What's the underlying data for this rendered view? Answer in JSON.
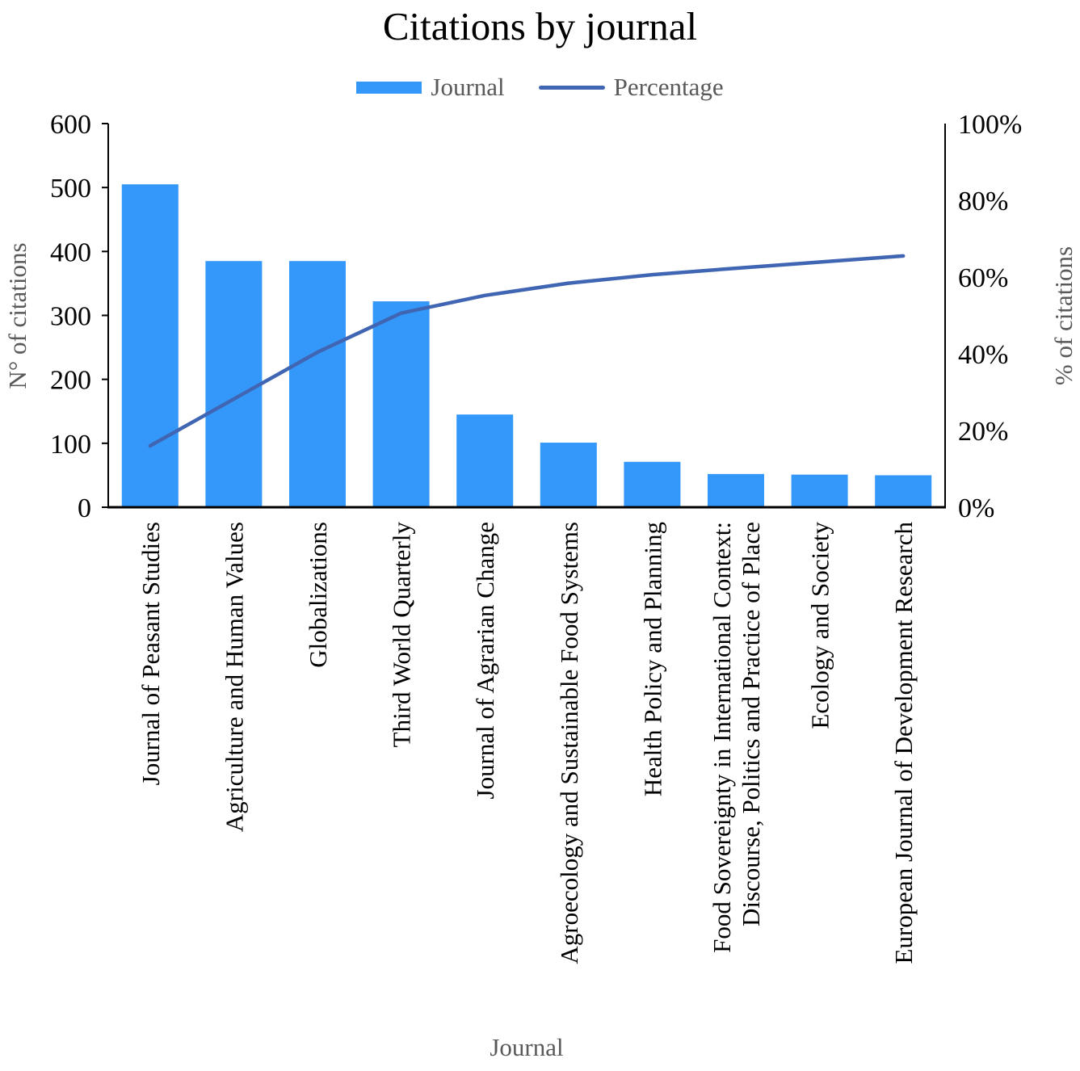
{
  "chart_data": {
    "type": "bar",
    "subtype": "pareto-combo (bars + cumulative percentage line)",
    "title": "Citations by journal",
    "legend": [
      "Journal",
      "Percentage"
    ],
    "legend_position": "top",
    "grid": false,
    "xlabel": "Journal",
    "ylabel": "N° of citations",
    "y2label": "% of citations",
    "categories": [
      "Journal of Peasant Studies",
      "Agriculture and Human Values",
      "Globalizations",
      "Third World Quarterly",
      "Journal of Agrarian Change",
      "Agroecology and Sustainable Food Systems",
      "Health Policy and Planning",
      "Food Sovereignty in International Context:\nDiscourse, Politics and Practice of Place",
      "Ecology and Society",
      "European Journal of Development Research"
    ],
    "series": [
      {
        "name": "Journal",
        "type": "bar",
        "axis": "left",
        "values": [
          505,
          385,
          385,
          322,
          145,
          101,
          71,
          52,
          51,
          50
        ]
      },
      {
        "name": "Percentage",
        "type": "line",
        "axis": "right",
        "values": [
          16.0,
          28.2,
          40.4,
          50.6,
          55.2,
          58.4,
          60.6,
          62.3,
          63.9,
          65.5
        ]
      }
    ],
    "y_left": {
      "min": 0,
      "max": 600,
      "ticks": [
        "0",
        "100",
        "200",
        "300",
        "400",
        "500",
        "600"
      ]
    },
    "y_right": {
      "min": 0,
      "max": 100,
      "ticks": [
        "0%",
        "20%",
        "40%",
        "60%",
        "80%",
        "100%"
      ]
    },
    "colors": {
      "bar": "#3498FB",
      "line": "#4066B3",
      "axis_line": "#000000",
      "tick_text": "#000000",
      "title_text": "#000000",
      "muted_text": "#595959"
    }
  }
}
